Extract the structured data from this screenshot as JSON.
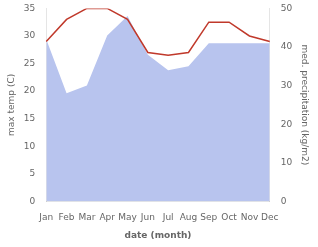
{
  "chart_data": {
    "type": "line",
    "xlabel": "date (month)",
    "ylabel": "max temp (C)",
    "y2label": "med. precipitation (kg/m2)",
    "categories": [
      "Jan",
      "Feb",
      "Mar",
      "Apr",
      "May",
      "Jun",
      "Jul",
      "Aug",
      "Sep",
      "Oct",
      "Nov",
      "Dec"
    ],
    "series": [
      {
        "type": "area",
        "color": "#b8c4ee",
        "axis": "y2",
        "values": [
          42.0,
          28.0,
          30.0,
          43.0,
          48.0,
          38.0,
          34.0,
          35.0,
          41.0,
          41.0,
          41.0,
          41.0
        ]
      },
      {
        "type": "line",
        "color": "#c0392b",
        "values": [
          29.0,
          33.0,
          35.0,
          35.0,
          33.0,
          27.0,
          26.5,
          27.0,
          32.5,
          32.5,
          30.0,
          29.0
        ]
      }
    ],
    "ylim": [
      0,
      35
    ],
    "yticks": [
      0,
      5,
      10,
      15,
      20,
      25,
      30,
      35
    ],
    "y2lim": [
      0,
      50
    ],
    "y2ticks": [
      0,
      10,
      20,
      30,
      40,
      50
    ],
    "grid": false
  }
}
